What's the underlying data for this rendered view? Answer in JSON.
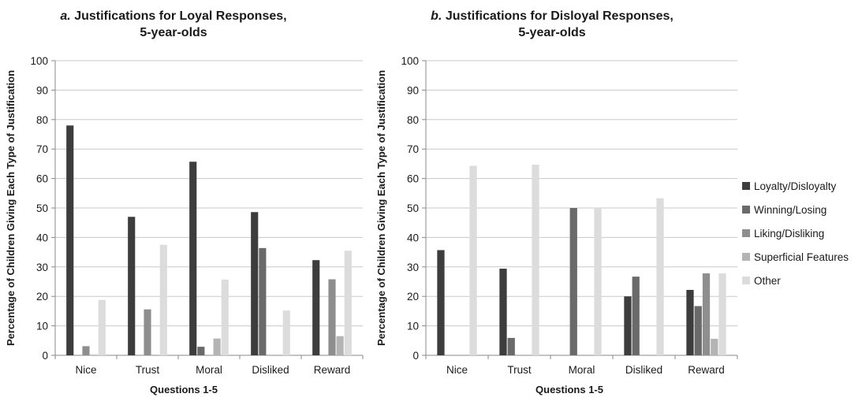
{
  "chart_data": [
    {
      "type": "bar",
      "title_prefix": "a.",
      "title": "Justifications for Loyal Responses,",
      "title_line2": "5-year-olds",
      "xlabel": "Questions 1-5",
      "ylabel": "Percentage of Children Giving Each Type of Justification",
      "ylim": [
        0,
        100
      ],
      "yticks": [
        0,
        10,
        20,
        30,
        40,
        50,
        60,
        70,
        80,
        90,
        100
      ],
      "grid": true,
      "categories": [
        "Nice",
        "Trust",
        "Moral",
        "Disliked",
        "Reward"
      ],
      "series": [
        {
          "name": "Loyalty/Disloyalty",
          "color": "#3d3d3d",
          "values": [
            78,
            47,
            65.7,
            48.6,
            32.3
          ]
        },
        {
          "name": "Winning/Losing",
          "color": "#6a6a6a",
          "values": [
            0,
            0,
            2.9,
            36.4,
            0
          ]
        },
        {
          "name": "Liking/Disliking",
          "color": "#8e8e8e",
          "values": [
            3.1,
            15.6,
            0,
            0,
            25.8
          ]
        },
        {
          "name": "Superficial Features",
          "color": "#b4b4b4",
          "values": [
            0,
            0,
            5.7,
            0,
            6.5
          ]
        },
        {
          "name": "Other",
          "color": "#dcdcdc",
          "values": [
            18.8,
            37.5,
            25.7,
            15.2,
            35.5
          ]
        }
      ]
    },
    {
      "type": "bar",
      "title_prefix": "b.",
      "title": "Justifications for Disloyal Responses,",
      "title_line2": "5-year-olds",
      "xlabel": "Questions 1-5",
      "ylabel": "Percentage of Children Giving Each Type of Justification",
      "ylim": [
        0,
        100
      ],
      "yticks": [
        0,
        10,
        20,
        30,
        40,
        50,
        60,
        70,
        80,
        90,
        100
      ],
      "grid": true,
      "categories": [
        "Nice",
        "Trust",
        "Moral",
        "Disliked",
        "Reward"
      ],
      "series": [
        {
          "name": "Loyalty/Disloyalty",
          "color": "#3d3d3d",
          "values": [
            35.7,
            29.4,
            0,
            20,
            22.2
          ]
        },
        {
          "name": "Winning/Losing",
          "color": "#6a6a6a",
          "values": [
            0,
            5.9,
            50,
            26.7,
            16.7
          ]
        },
        {
          "name": "Liking/Disliking",
          "color": "#8e8e8e",
          "values": [
            0,
            0,
            0,
            0,
            27.8
          ]
        },
        {
          "name": "Superficial Features",
          "color": "#b4b4b4",
          "values": [
            0,
            0,
            0,
            0,
            5.6
          ]
        },
        {
          "name": "Other",
          "color": "#dcdcdc",
          "values": [
            64.3,
            64.7,
            50,
            53.3,
            27.8
          ]
        }
      ]
    }
  ],
  "legend": {
    "placement": "right",
    "items": [
      {
        "name": "Loyalty/Disloyalty",
        "color": "#3d3d3d"
      },
      {
        "name": "Winning/Losing",
        "color": "#6a6a6a"
      },
      {
        "name": "Liking/Disliking",
        "color": "#8e8e8e"
      },
      {
        "name": "Superficial Features",
        "color": "#b4b4b4"
      },
      {
        "name": "Other",
        "color": "#dcdcdc"
      }
    ]
  }
}
